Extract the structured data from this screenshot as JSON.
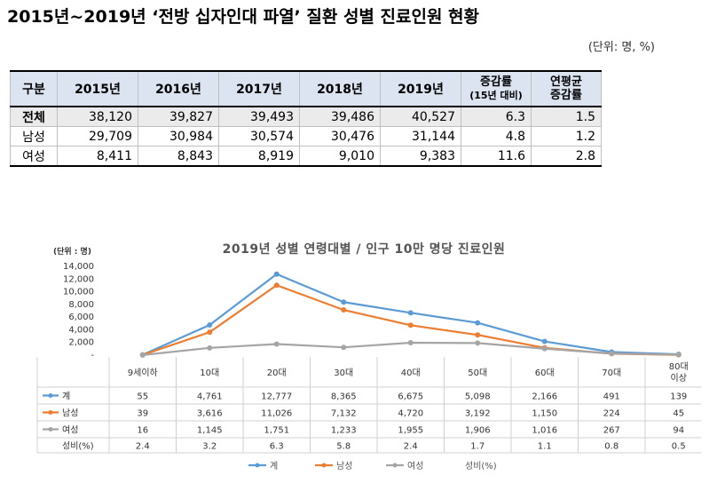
{
  "title": "2015년~2019년 ‘전방 십자인대 파열’ 질환 성별 진료인원 현황",
  "unit_top": "(단위: 명, %)",
  "table": {
    "headers": [
      "구분",
      "2015년",
      "2016년",
      "2017년",
      "2018년",
      "2019년"
    ],
    "growth_header": {
      "line1": "증감률",
      "line2": "(15년 대비)"
    },
    "cagr_header": {
      "line1": "연평균",
      "line2": "증감률"
    },
    "rows": [
      {
        "label": "전체",
        "values": [
          "38,120",
          "39,827",
          "39,493",
          "39,486",
          "40,527",
          "6.3",
          "1.5"
        ]
      },
      {
        "label": "남성",
        "values": [
          "29,709",
          "30,984",
          "30,574",
          "30,476",
          "31,144",
          "4.8",
          "1.2"
        ]
      },
      {
        "label": "여성",
        "values": [
          "8,411",
          "8,843",
          "8,919",
          "9,010",
          "9,383",
          "11.6",
          "2.8"
        ]
      }
    ]
  },
  "colors": {
    "total": "#5b9bd5",
    "male": "#ed7d31",
    "female": "#a5a5a5"
  },
  "chart_data": {
    "type": "line",
    "title": "2019년 성별 연령대별 / 인구 10만 명당 진료인원",
    "unit": "(단위 : 명)",
    "categories": [
      "9세이하",
      "10대",
      "20대",
      "30대",
      "40대",
      "50대",
      "60대",
      "70대",
      "80대|이상"
    ],
    "yticks": [
      "14,000",
      "12,000",
      "10,000",
      "8,000",
      "6,000",
      "4,000",
      "2,000",
      "-"
    ],
    "ylim": [
      0,
      14000
    ],
    "series": [
      {
        "name": "계",
        "color": "#5b9bd5",
        "values": [
          55,
          4761,
          12777,
          8365,
          6675,
          5098,
          2166,
          491,
          139
        ],
        "labels": [
          "55",
          "4,761",
          "12,777",
          "8,365",
          "6,675",
          "5,098",
          "2,166",
          "491",
          "139"
        ]
      },
      {
        "name": "남성",
        "color": "#ed7d31",
        "values": [
          39,
          3616,
          11026,
          7132,
          4720,
          3192,
          1150,
          224,
          45
        ],
        "labels": [
          "39",
          "3,616",
          "11,026",
          "7,132",
          "4,720",
          "3,192",
          "1,150",
          "224",
          "45"
        ]
      },
      {
        "name": "여성",
        "color": "#a5a5a5",
        "values": [
          16,
          1145,
          1751,
          1233,
          1955,
          1906,
          1016,
          267,
          94
        ],
        "labels": [
          "16",
          "1,145",
          "1,751",
          "1,233",
          "1,955",
          "1,906",
          "1,016",
          "267",
          "94"
        ]
      }
    ],
    "ratio": {
      "name": "성비(%)",
      "labels": [
        "2.4",
        "3.2",
        "6.3",
        "5.8",
        "2.4",
        "1.7",
        "1.1",
        "0.8",
        "0.5"
      ]
    },
    "legend": [
      "계",
      "남성",
      "여성",
      "성비(%)"
    ],
    "legend_position": "bottom"
  }
}
